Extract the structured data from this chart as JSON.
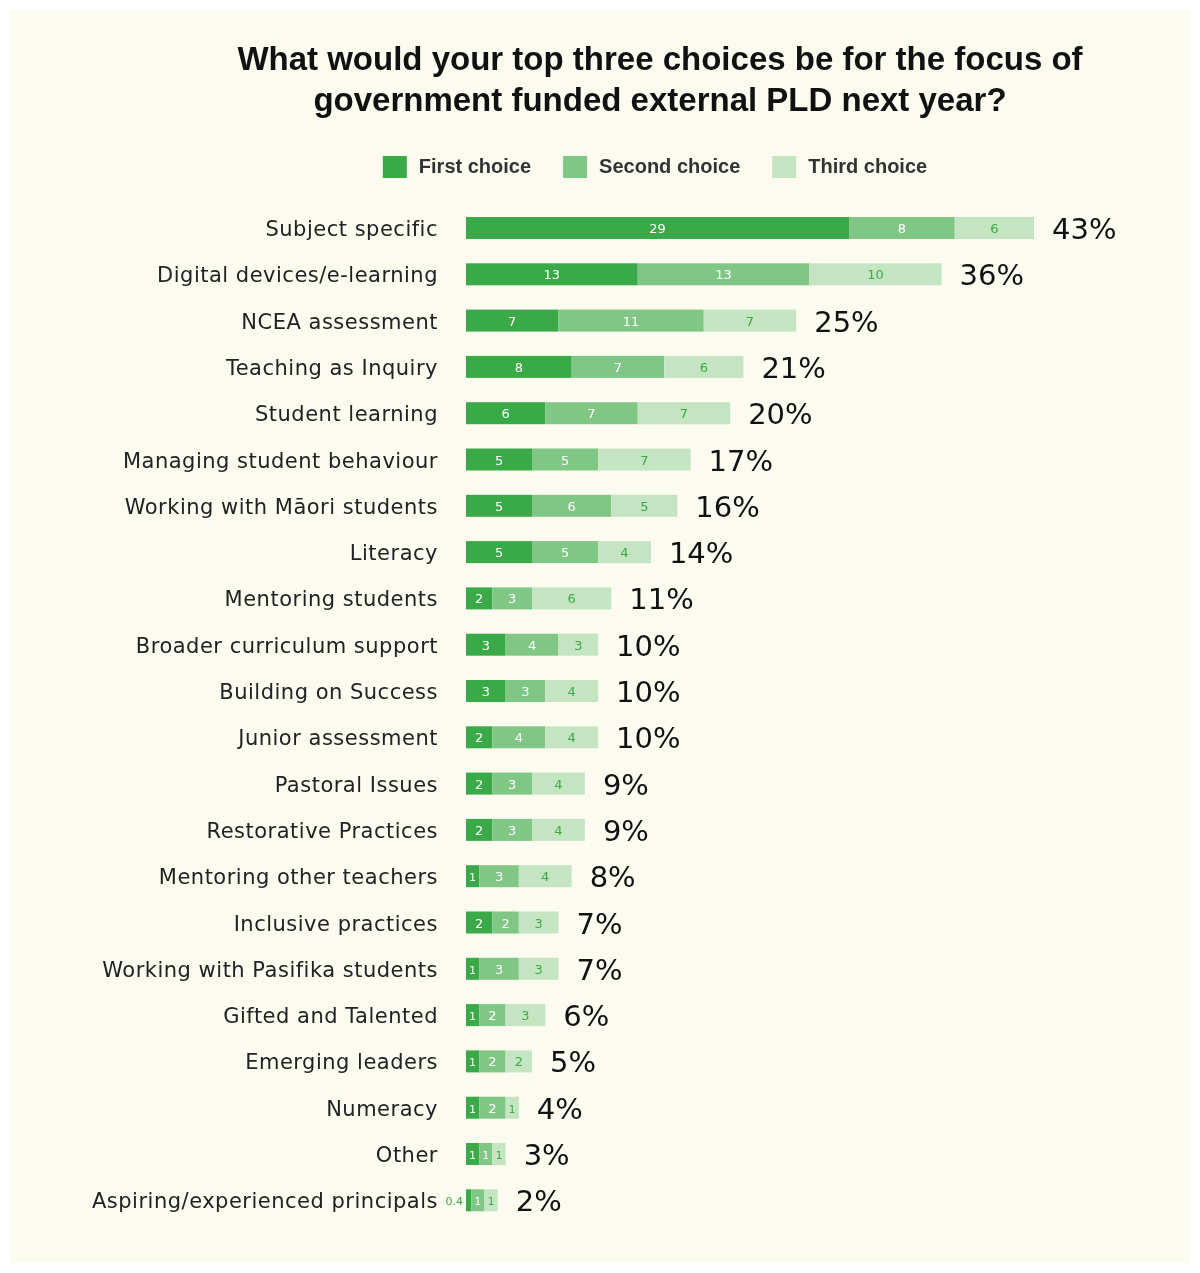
{
  "chart_data": {
    "type": "bar",
    "orientation": "horizontal",
    "stacked": true,
    "data_labels": true,
    "legend": "top",
    "title": "What would your top three choices be for the focus of government funded external PLD next year?",
    "categories": [
      "Subject specific",
      "Digital devices/e-learning",
      "NCEA assessment",
      "Teaching as Inquiry",
      "Student learning",
      "Managing student behaviour",
      "Working with Māori students",
      "Literacy",
      "Mentoring students",
      "Broader curriculum support",
      "Building on Success",
      "Junior assessment",
      "Pastoral Issues",
      "Restorative Practices",
      "Mentoring other teachers",
      "Inclusive practices",
      "Working with Pasifika students",
      "Gifted and Talented",
      "Emerging leaders",
      "Numeracy",
      "Other",
      "Aspiring/experienced principals"
    ],
    "series": [
      {
        "name": "First choice",
        "color": "#3aaa48",
        "values": [
          29,
          13,
          7,
          8,
          6,
          5,
          5,
          5,
          2,
          3,
          3,
          2,
          2,
          2,
          1,
          2,
          1,
          1,
          1,
          1,
          1,
          0.4
        ]
      },
      {
        "name": "Second choice",
        "color": "#80c684",
        "values": [
          8,
          13,
          11,
          7,
          7,
          5,
          6,
          5,
          3,
          4,
          3,
          4,
          3,
          3,
          3,
          2,
          3,
          2,
          2,
          2,
          1,
          1
        ]
      },
      {
        "name": "Third choice",
        "color": "#c5e5c2",
        "values": [
          6,
          10,
          7,
          6,
          7,
          7,
          5,
          4,
          6,
          3,
          4,
          4,
          4,
          4,
          4,
          3,
          3,
          3,
          2,
          1,
          1,
          1
        ]
      }
    ],
    "totals": [
      "43%",
      "36%",
      "25%",
      "21%",
      "20%",
      "17%",
      "16%",
      "14%",
      "11%",
      "10%",
      "10%",
      "10%",
      "9%",
      "9%",
      "8%",
      "7%",
      "7%",
      "6%",
      "5%",
      "4%",
      "3%",
      "2%"
    ]
  }
}
